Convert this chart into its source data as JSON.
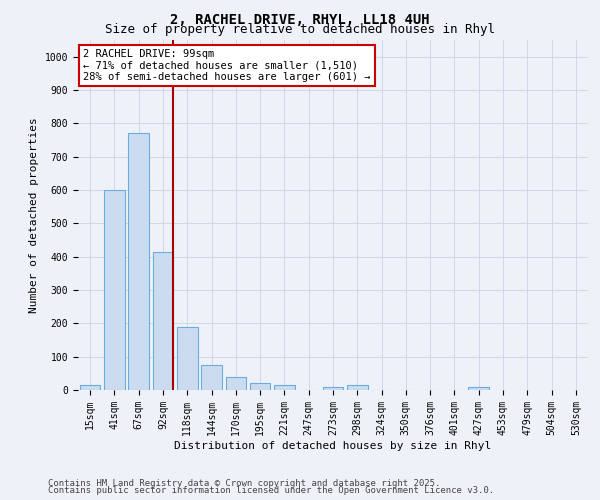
{
  "title_line1": "2, RACHEL DRIVE, RHYL, LL18 4UH",
  "title_line2": "Size of property relative to detached houses in Rhyl",
  "xlabel": "Distribution of detached houses by size in Rhyl",
  "ylabel": "Number of detached properties",
  "categories": [
    "15sqm",
    "41sqm",
    "67sqm",
    "92sqm",
    "118sqm",
    "144sqm",
    "170sqm",
    "195sqm",
    "221sqm",
    "247sqm",
    "273sqm",
    "298sqm",
    "324sqm",
    "350sqm",
    "376sqm",
    "401sqm",
    "427sqm",
    "453sqm",
    "479sqm",
    "504sqm",
    "530sqm"
  ],
  "values": [
    15,
    600,
    770,
    415,
    190,
    75,
    40,
    20,
    15,
    0,
    10,
    15,
    0,
    0,
    0,
    0,
    10,
    0,
    0,
    0,
    0
  ],
  "bar_color": "#ccdcf0",
  "bar_edge_color": "#6aabe0",
  "vline_color": "#aa0000",
  "annotation_text": "2 RACHEL DRIVE: 99sqm\n← 71% of detached houses are smaller (1,510)\n28% of semi-detached houses are larger (601) →",
  "annotation_box_color": "#ffffff",
  "annotation_box_edge_color": "#cc0000",
  "ylim": [
    0,
    1050
  ],
  "yticks": [
    0,
    100,
    200,
    300,
    400,
    500,
    600,
    700,
    800,
    900,
    1000
  ],
  "grid_color": "#d0d8e8",
  "background_color": "#eef2f8",
  "footer_line1": "Contains HM Land Registry data © Crown copyright and database right 2025.",
  "footer_line2": "Contains public sector information licensed under the Open Government Licence v3.0.",
  "title_fontsize": 10,
  "subtitle_fontsize": 9,
  "axis_label_fontsize": 8,
  "tick_fontsize": 7,
  "annotation_fontsize": 7.5,
  "footer_fontsize": 6.5
}
